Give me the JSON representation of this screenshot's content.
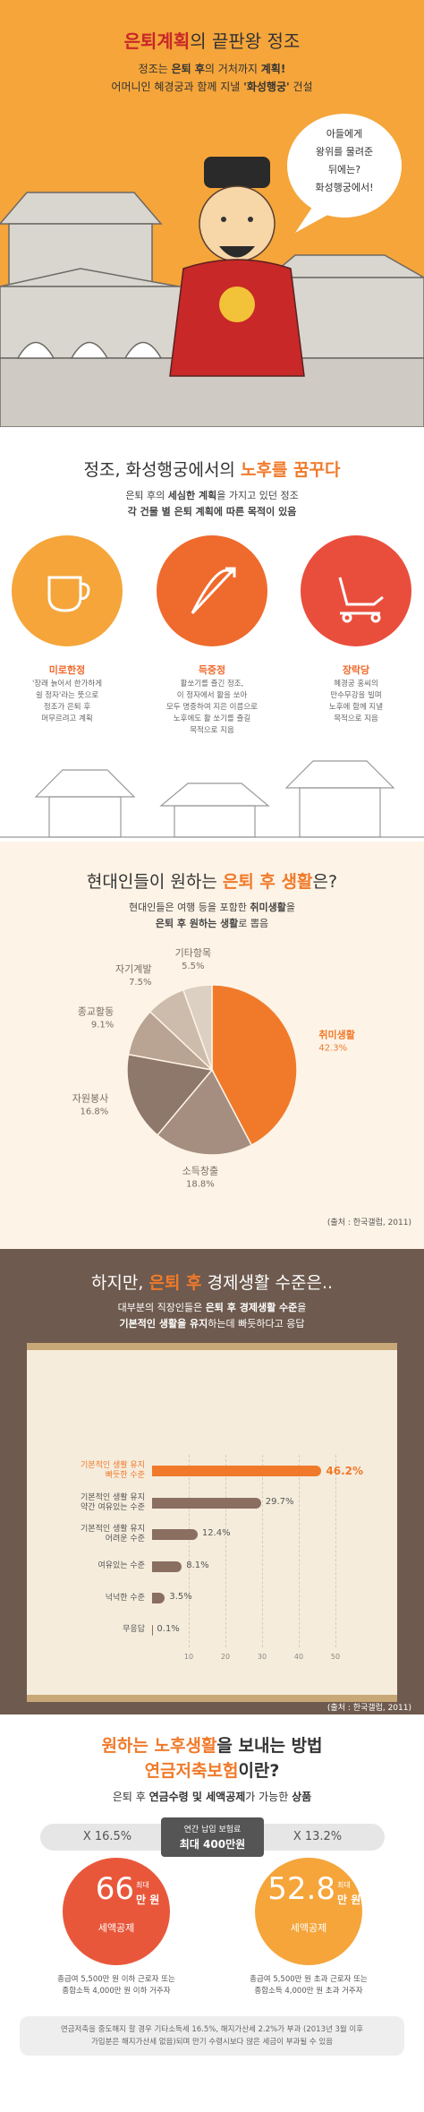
{
  "hero": {
    "title": [
      "은퇴계획",
      "의 끝판왕 정조"
    ],
    "line1": [
      "정조는 ",
      "은퇴 후",
      "의 거처까지 ",
      "계획!"
    ],
    "line2": [
      "어머니인 혜경궁과 함께 지낼 ",
      "'화성행궁'",
      " 건설"
    ],
    "bubble": "아들에게\n왕위를 물려준\n뒤에는?\n화성행궁에서!"
  },
  "plan": {
    "title": [
      "정조, 화성행궁에서의 ",
      "노후를 꿈꾸다"
    ],
    "line1": [
      "은퇴 후의 ",
      "세심한 계획",
      "을 가지고 있던 정조"
    ],
    "line2": "각 건물 별 은퇴 계획에 따른 목적이 있음",
    "buildings": [
      {
        "name": "미로한정",
        "desc": "'장래 늙어서 한가하게\n쉴 정자'라는 뜻으로\n정조가 은퇴 후\n머무르려고 계획"
      },
      {
        "name": "득중정",
        "desc": "활쏘기를 즐긴 정조,\n이 정자에서 활을 쏘아\n모두 명중하여 지은 이름으로\n노후에도 활 쏘기를 즐길\n목적으로 지음"
      },
      {
        "name": "장락당",
        "desc": "혜경궁 홍씨의\n만수무강을 빌며\n노후에 함께 지낼\n목적으로 지음"
      }
    ]
  },
  "wish": {
    "title": [
      "현대인들이 원하는 ",
      "은퇴 후 생활",
      "은?"
    ],
    "line1": [
      "현대인들은 여행 등을 포함한 ",
      "취미생활",
      "을"
    ],
    "line2": [
      "은퇴 후 원하는 생활",
      "로 뽑음"
    ]
  },
  "economy": {
    "title": [
      "하지만, ",
      "은퇴 후",
      " 경제생활 수준은.."
    ],
    "line1": [
      "대부분의 직장인들은 ",
      "은퇴 후 경제생활 수준",
      "을"
    ],
    "line2": [
      "기본적인 생활을 유지",
      "하는데 빠듯하다고 응답"
    ]
  },
  "chart_data": [
    {
      "type": "pie",
      "categories": [
        "취미생활",
        "소득창출",
        "자원봉사",
        "종교활동",
        "자기계발",
        "기타항목"
      ],
      "values": [
        42.3,
        18.8,
        16.8,
        9.1,
        7.5,
        5.5
      ],
      "value_labels": [
        "42.3%",
        "18.8%",
        "16.8%",
        "9.1%",
        "7.5%",
        "5.5%"
      ],
      "colors": [
        "#f07a2a",
        "#a58e80",
        "#8e776b",
        "#b9a392",
        "#cdbcab",
        "#dcd0c3"
      ],
      "source": "(출처 : 한국갤럽, 2011)"
    },
    {
      "type": "bar",
      "orientation": "horizontal",
      "categories": [
        "기본적인 생활 유지\n빠듯한 수준",
        "기본적인 생활 유지\n약간 여유있는 수준",
        "기본적인 생활 유지\n어려운 수준",
        "여유있는 수준",
        "넉넉한 수준",
        "무응답"
      ],
      "values": [
        46.2,
        29.7,
        12.4,
        8.1,
        3.5,
        0.1
      ],
      "value_labels": [
        "46.2%",
        "29.7%",
        "12.4%",
        "8.1%",
        "3.5%",
        "0.1%"
      ],
      "colors": [
        "#f07a2a",
        "#8a6e60",
        "#8a6e60",
        "#8a6e60",
        "#8a6e60",
        "#8a6e60"
      ],
      "xlim": [
        0,
        50
      ],
      "xticks": [
        10,
        20,
        30,
        40,
        50
      ],
      "source": "(출처 : 한국갤럽, 2011)"
    }
  ],
  "pension": {
    "title1": [
      "원하는 ",
      "노후생활",
      "을 보내는 방법"
    ],
    "title2": [
      "연금저축보험",
      "이란?"
    ],
    "sub": [
      "은퇴 후 ",
      "연금수령 및 세액공제",
      "가 가능한 ",
      "상품"
    ],
    "left_rate": "X 16.5%",
    "center_top": "연간 납입 보험료",
    "center_bottom": "최대 400만원",
    "right_rate": "X 13.2%",
    "circles": [
      {
        "amount": "66",
        "max": "최대",
        "unit": "만 원",
        "label": "세액공제",
        "desc": "총급여 5,500만 원 이하 근로자 또는\n종합소득 4,000만 원 이하 거주자"
      },
      {
        "amount": "52.8",
        "max": "최대",
        "unit": "만 원",
        "label": "세액공제",
        "desc": "총급여 5,500만 원 초과 근로자 또는\n종합소득 4,000만 원 초과 거주자"
      }
    ],
    "note": "연금저축을 중도해지 할 경우 기타소득세 16.5%, 해지가산세 2.2%가 부과 (2013년 3월 이후\n가입분은 해지가산세 없음)되며 만기 수령시보다 많은 세금이 부과될 수 있음"
  }
}
